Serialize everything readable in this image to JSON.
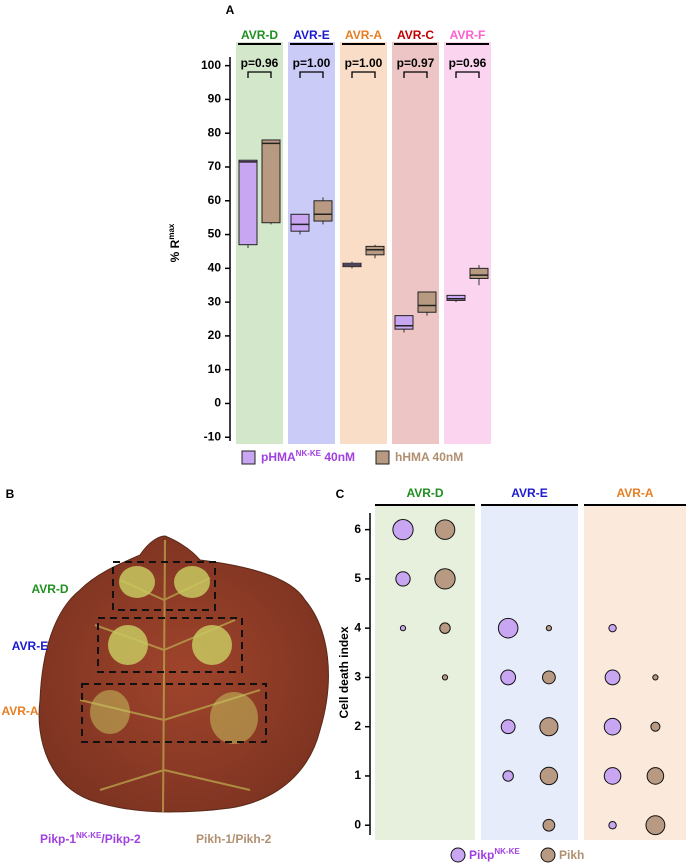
{
  "chart_data": [
    {
      "type": "box",
      "panel_label": "A",
      "categories": [
        "AVR-D",
        "AVR-E",
        "AVR-A",
        "AVR-C",
        "AVR-F"
      ],
      "category_colors": [
        "#1f8f1f",
        "#1a1ad0",
        "#e67e22",
        "#c00000",
        "#ff5fcf"
      ],
      "band_colors": [
        "#d3e8cb",
        "#cbcbf7",
        "#f9ddc7",
        "#edc5c5",
        "#fbd5ef"
      ],
      "annotations": [
        "p=0.96",
        "p=1.00",
        "p=1.00",
        "p=0.97",
        "p=0.96"
      ],
      "ylabel": [
        "% R",
        "max"
      ],
      "ylim": [
        -12,
        107
      ],
      "yticks": [
        -10,
        0,
        10,
        20,
        30,
        40,
        50,
        60,
        70,
        80,
        90,
        100
      ],
      "series": [
        {
          "name": [
            "pHMA",
            "NK-KE",
            " 40nM"
          ],
          "color": "#c9a6f2",
          "text_color": "#a040e0",
          "values": [
            {
              "min": 46,
              "q1": 47,
              "median": 71.5,
              "q3": 72,
              "max": 72
            },
            {
              "min": 50,
              "q1": 51,
              "median": 53,
              "q3": 56,
              "max": 56
            },
            {
              "min": 40,
              "q1": 40.5,
              "median": 41,
              "q3": 41.5,
              "max": 42
            },
            {
              "min": 21,
              "q1": 22,
              "median": 23,
              "q3": 26,
              "max": 26
            },
            {
              "min": 30,
              "q1": 30.5,
              "median": 31,
              "q3": 32,
              "max": 32
            }
          ]
        },
        {
          "name": [
            "hHMA 40nM"
          ],
          "color": "#b89a82",
          "text_color": "#b09070",
          "values": [
            {
              "min": 53,
              "q1": 53.5,
              "median": 77,
              "q3": 78,
              "max": 78
            },
            {
              "min": 53,
              "q1": 54,
              "median": 56,
              "q3": 60,
              "max": 61
            },
            {
              "min": 43,
              "q1": 44,
              "median": 45.5,
              "q3": 46.5,
              "max": 47
            },
            {
              "min": 26,
              "q1": 27,
              "median": 29,
              "q3": 33,
              "max": 33
            },
            {
              "min": 35,
              "q1": 37,
              "median": 38,
              "q3": 40,
              "max": 41
            }
          ]
        }
      ]
    },
    {
      "type": "bubble",
      "panel_label": "C",
      "categories": [
        "AVR-D",
        "AVR-E",
        "AVR-A"
      ],
      "category_colors": [
        "#1f8f1f",
        "#1a1ad0",
        "#e67e22"
      ],
      "band_colors": [
        "#e6f0dd",
        "#e7ecfa",
        "#fbeadc"
      ],
      "ylabel": "Cell death index",
      "ylim": [
        -0.3,
        6.5
      ],
      "yticks": [
        0,
        1,
        2,
        3,
        4,
        5,
        6
      ],
      "series": [
        {
          "name": [
            "Pikp",
            "NK-KE"
          ],
          "color": "#c9a6f2",
          "text_color": "#a040e0",
          "values": [
            [
              null,
              null,
              null,
              null,
              2,
              15,
              30
            ],
            [
              null,
              8,
              14,
              16,
              28,
              null,
              null
            ],
            [
              4,
              20,
              20,
              16,
              4,
              null,
              null
            ]
          ]
        },
        {
          "name": [
            "Pikh"
          ],
          "color": "#b89a82",
          "text_color": "#b09070",
          "values": [
            [
              null,
              null,
              null,
              2,
              8,
              30,
              28
            ],
            [
              10,
              22,
              24,
              12,
              2,
              null,
              null
            ],
            [
              26,
              20,
              6,
              2,
              null,
              null,
              null
            ]
          ]
        }
      ]
    }
  ],
  "photo": {
    "panel_label": "B",
    "row_labels": [
      "AVR-D",
      "AVR-E",
      "AVR-A"
    ],
    "row_label_colors": [
      "#1f8f1f",
      "#1a1ad0",
      "#e67e22"
    ],
    "captions": [
      {
        "text": [
          "Pikp-1",
          "NK-KE",
          "/Pikp-2"
        ],
        "color": "#a040e0"
      },
      {
        "text": [
          "Pikh-1/Pikh-2"
        ],
        "color": "#b09070"
      }
    ]
  }
}
